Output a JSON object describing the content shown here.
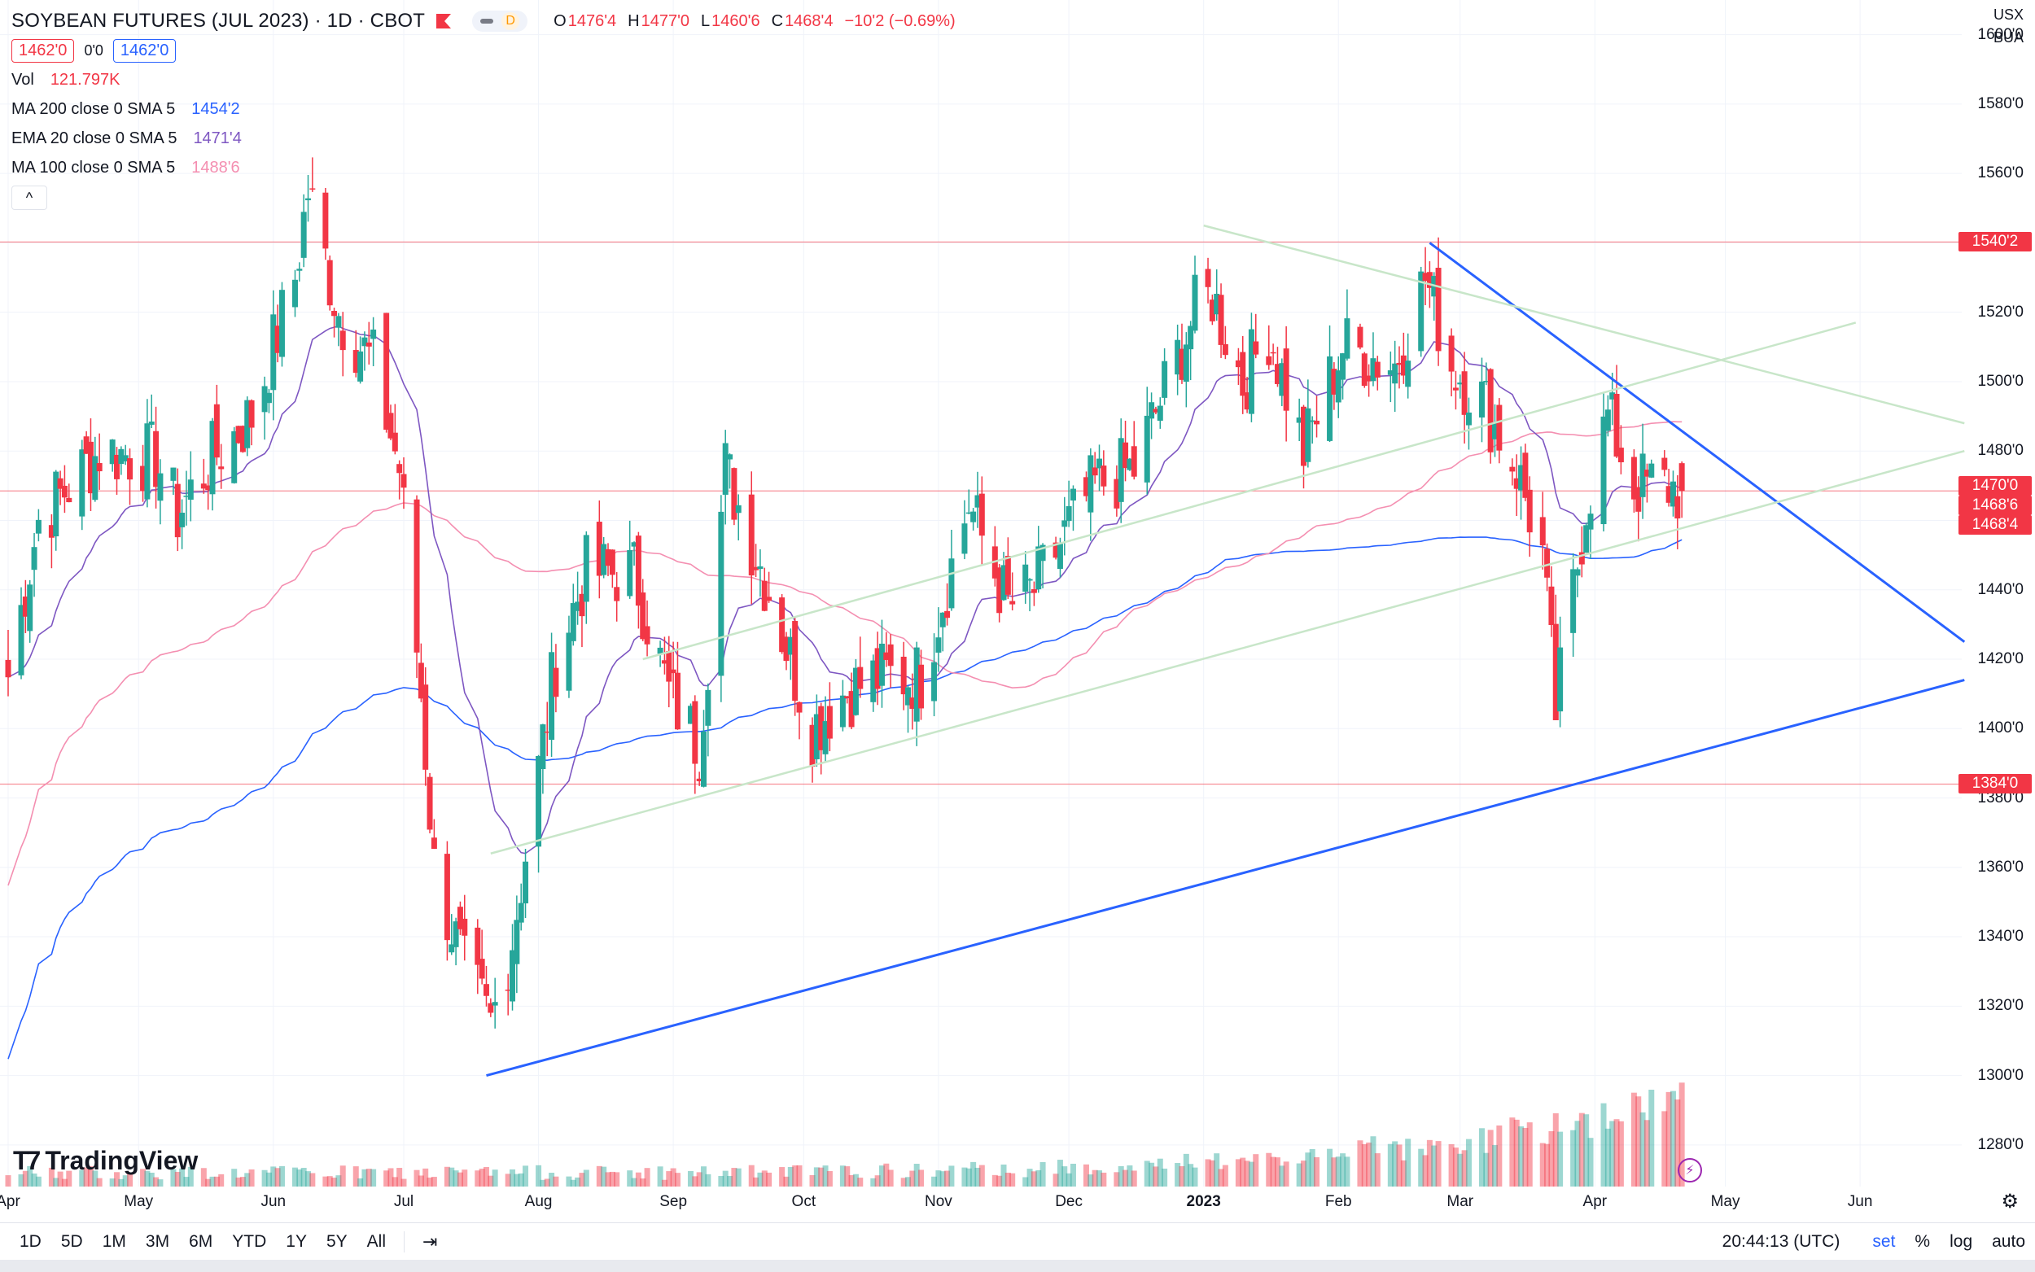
{
  "header": {
    "symbol_title": "SOYBEAN FUTURES (JUL 2023) · 1D · CBOT",
    "d_badge": "D",
    "ohlc": {
      "o_label": "O",
      "o": "1476'4",
      "h_label": "H",
      "h": "1477'0",
      "l_label": "L",
      "l": "1460'6",
      "c_label": "C",
      "c": "1468'4",
      "change": "−10'2 (−0.69%)"
    },
    "sell_price": "1462'0",
    "spread": "0'0",
    "buy_price": "1462'0",
    "vol_label": "Vol",
    "vol_value": "121.797K"
  },
  "indicators": [
    {
      "label": "MA 200 close 0 SMA 5",
      "value": "1454'2",
      "color": "#2962ff"
    },
    {
      "label": "EMA 20 close 0 SMA 5",
      "value": "1471'4",
      "color": "#7e57c2"
    },
    {
      "label": "MA 100 close 0 SMA 5",
      "value": "1488'6",
      "color": "#f48fb1"
    }
  ],
  "collapse_glyph": "^",
  "currency": {
    "unit1": "USX",
    "unit2": "BUA"
  },
  "price_tags": [
    {
      "text": "1540'2",
      "value": 1540.25,
      "color": "#f23645"
    },
    {
      "text": "1470'0",
      "value": 1470,
      "color": "#f23645"
    },
    {
      "text": "1468'6",
      "value": 1468.75,
      "color": "#f23645"
    },
    {
      "text": "1468'4",
      "value": 1468.5,
      "color": "#f23645"
    },
    {
      "text": "1384'0",
      "value": 1384,
      "color": "#f23645"
    }
  ],
  "chart_data": {
    "type": "candlestick",
    "title": "SOYBEAN FUTURES (JUL 2023)",
    "ylim": [
      1268,
      1610
    ],
    "y_ticks": [
      "1280'0",
      "1300'0",
      "1320'0",
      "1340'0",
      "1360'0",
      "1380'0",
      "1400'0",
      "1420'0",
      "1440'0",
      "1460'0",
      "1480'0",
      "1500'0",
      "1520'0",
      "1540'0",
      "1560'0",
      "1580'0",
      "1600'0"
    ],
    "y_tick_values": [
      1280,
      1300,
      1320,
      1340,
      1360,
      1380,
      1400,
      1420,
      1440,
      1460,
      1480,
      1500,
      1520,
      1540,
      1560,
      1580,
      1600
    ],
    "x_ticks": [
      "Apr",
      "May",
      "Jun",
      "Jul",
      "Aug",
      "Sep",
      "Oct",
      "Nov",
      "Dec",
      "2023",
      "Feb",
      "Mar",
      "Apr",
      "May",
      "Jun"
    ],
    "x_tick_dates": [
      "2022-04-01",
      "2022-05-01",
      "2022-06-01",
      "2022-07-01",
      "2022-08-01",
      "2022-09-01",
      "2022-10-01",
      "2022-11-01",
      "2022-12-01",
      "2023-01-01",
      "2023-02-01",
      "2023-03-01",
      "2023-04-01",
      "2023-05-01",
      "2023-06-01"
    ],
    "x_range_dates": [
      "2022-04-01",
      "2023-06-30"
    ],
    "bold_ticks": [
      "2023"
    ],
    "anchors": [
      [
        "2022-04-01",
        1415
      ],
      [
        "2022-04-08",
        1460
      ],
      [
        "2022-04-22",
        1480
      ],
      [
        "2022-05-05",
        1478
      ],
      [
        "2022-05-10",
        1462
      ],
      [
        "2022-05-18",
        1478
      ],
      [
        "2022-05-27",
        1490
      ],
      [
        "2022-06-06",
        1530
      ],
      [
        "2022-06-09",
        1555
      ],
      [
        "2022-06-16",
        1520
      ],
      [
        "2022-06-24",
        1505
      ],
      [
        "2022-06-30",
        1475
      ],
      [
        "2022-07-05",
        1410
      ],
      [
        "2022-07-08",
        1360
      ],
      [
        "2022-07-15",
        1330
      ],
      [
        "2022-07-21",
        1315
      ],
      [
        "2022-07-26",
        1340
      ],
      [
        "2022-08-05",
        1420
      ],
      [
        "2022-08-12",
        1445
      ],
      [
        "2022-08-23",
        1445
      ],
      [
        "2022-08-31",
        1410
      ],
      [
        "2022-09-07",
        1395
      ],
      [
        "2022-09-13",
        1475
      ],
      [
        "2022-09-23",
        1440
      ],
      [
        "2022-10-03",
        1400
      ],
      [
        "2022-10-10",
        1410
      ],
      [
        "2022-10-18",
        1415
      ],
      [
        "2022-10-28",
        1415
      ],
      [
        "2022-11-08",
        1465
      ],
      [
        "2022-11-17",
        1435
      ],
      [
        "2022-11-23",
        1440
      ],
      [
        "2022-12-02",
        1460
      ],
      [
        "2022-12-07",
        1470
      ],
      [
        "2022-12-16",
        1475
      ],
      [
        "2022-12-30",
        1520
      ],
      [
        "2023-01-03",
        1525
      ],
      [
        "2023-01-10",
        1500
      ],
      [
        "2023-01-16",
        1515
      ],
      [
        "2023-01-24",
        1480
      ],
      [
        "2023-02-02",
        1510
      ],
      [
        "2023-02-14",
        1505
      ],
      [
        "2023-02-21",
        1530
      ],
      [
        "2023-02-27",
        1505
      ],
      [
        "2023-03-06",
        1495
      ],
      [
        "2023-03-14",
        1475
      ],
      [
        "2023-03-20",
        1450
      ],
      [
        "2023-03-23",
        1405
      ],
      [
        "2023-03-30",
        1465
      ],
      [
        "2023-04-04",
        1490
      ],
      [
        "2023-04-10",
        1470
      ],
      [
        "2023-04-18",
        1470
      ],
      [
        "2023-04-21",
        1468
      ]
    ],
    "trendlines": [
      {
        "name": "upper-resistance",
        "color": "#2962ff",
        "from": [
          "2023-02-22",
          1540
        ],
        "to": [
          "2023-06-25",
          1425
        ]
      },
      {
        "name": "lower-support",
        "color": "#2962ff",
        "from": [
          "2022-07-20",
          1300
        ],
        "to": [
          "2023-06-25",
          1414
        ]
      },
      {
        "name": "green-channel-low",
        "color": "#c8e6c9",
        "from": [
          "2022-07-21",
          1364
        ],
        "to": [
          "2023-06-25",
          1480
        ]
      },
      {
        "name": "green-channel-mid",
        "color": "#c8e6c9",
        "from": [
          "2022-08-25",
          1420
        ],
        "to": [
          "2023-05-31",
          1517
        ]
      },
      {
        "name": "green-descending",
        "color": "#c8e6c9",
        "from": [
          "2023-01-01",
          1545
        ],
        "to": [
          "2023-06-25",
          1488
        ]
      }
    ],
    "hlines": [
      {
        "value": 1540.25,
        "color": "#f23645"
      },
      {
        "value": 1384,
        "color": "#f23645"
      },
      {
        "value": 1468.5,
        "color": "#f23645"
      }
    ],
    "up_color": "#26a69a",
    "down_color": "#f23645",
    "ma_colors": {
      "ma200": "#2962ff",
      "ema20": "#7e57c2",
      "ma100": "#f48fb1"
    }
  },
  "toolbar": {
    "ranges": [
      "1D",
      "5D",
      "1M",
      "3M",
      "6M",
      "YTD",
      "1Y",
      "5Y",
      "All"
    ],
    "clock": "20:44:13 (UTC)",
    "opts": [
      "set",
      "%",
      "log",
      "auto"
    ]
  },
  "branding": "TradingView"
}
